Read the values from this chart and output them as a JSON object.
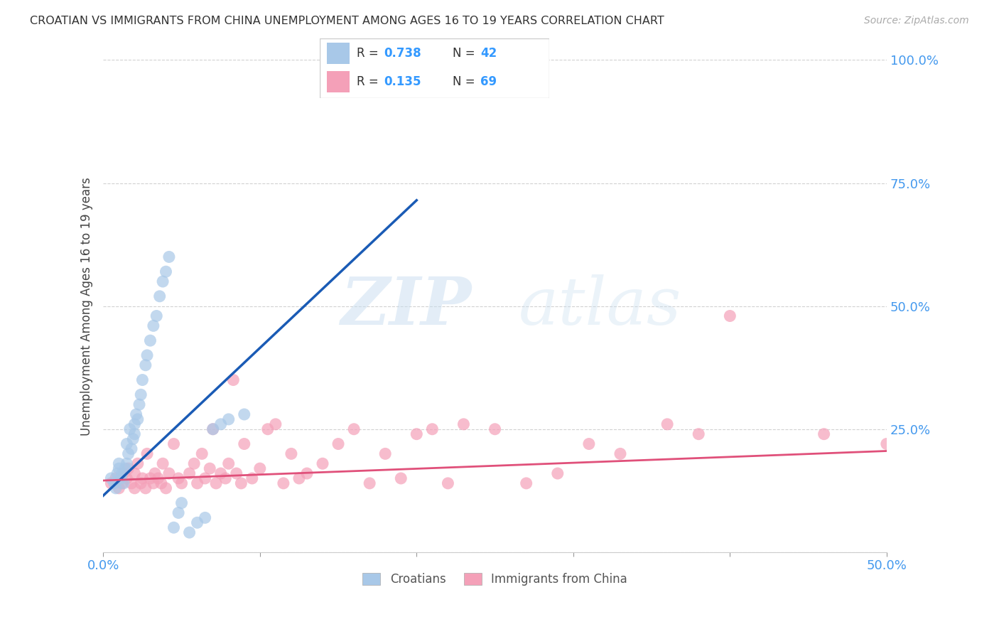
{
  "title": "CROATIAN VS IMMIGRANTS FROM CHINA UNEMPLOYMENT AMONG AGES 16 TO 19 YEARS CORRELATION CHART",
  "source": "Source: ZipAtlas.com",
  "ylabel": "Unemployment Among Ages 16 to 19 years",
  "xlim": [
    0.0,
    0.5
  ],
  "ylim": [
    0.0,
    1.0
  ],
  "xticks": [
    0.0,
    0.1,
    0.2,
    0.3,
    0.4,
    0.5
  ],
  "xtick_labels_show": [
    "0.0%",
    "",
    "",
    "",
    "",
    "50.0%"
  ],
  "yticks": [
    0.0,
    0.25,
    0.5,
    0.75,
    1.0
  ],
  "ytick_labels": [
    "",
    "25.0%",
    "50.0%",
    "75.0%",
    "100.0%"
  ],
  "croatian_color": "#a8c8e8",
  "china_color": "#f4a0b8",
  "blue_line_color": "#1a5bb5",
  "pink_line_color": "#e0507a",
  "R_croatian": 0.738,
  "N_croatian": 42,
  "R_china": 0.135,
  "N_china": 69,
  "watermark_zip": "ZIP",
  "watermark_atlas": "atlas",
  "croatian_x": [
    0.005,
    0.007,
    0.008,
    0.009,
    0.01,
    0.01,
    0.011,
    0.012,
    0.013,
    0.014,
    0.015,
    0.015,
    0.016,
    0.017,
    0.018,
    0.019,
    0.02,
    0.02,
    0.021,
    0.022,
    0.023,
    0.024,
    0.025,
    0.027,
    0.028,
    0.03,
    0.032,
    0.034,
    0.036,
    0.038,
    0.04,
    0.042,
    0.045,
    0.048,
    0.05,
    0.055,
    0.06,
    0.065,
    0.07,
    0.075,
    0.08,
    0.09
  ],
  "croatian_y": [
    0.15,
    0.14,
    0.13,
    0.16,
    0.17,
    0.18,
    0.15,
    0.16,
    0.14,
    0.17,
    0.18,
    0.22,
    0.2,
    0.25,
    0.21,
    0.23,
    0.24,
    0.26,
    0.28,
    0.27,
    0.3,
    0.32,
    0.35,
    0.38,
    0.4,
    0.43,
    0.46,
    0.48,
    0.52,
    0.55,
    0.57,
    0.6,
    0.05,
    0.08,
    0.1,
    0.04,
    0.06,
    0.07,
    0.25,
    0.26,
    0.27,
    0.28
  ],
  "china_x": [
    0.005,
    0.008,
    0.01,
    0.012,
    0.013,
    0.015,
    0.016,
    0.018,
    0.02,
    0.02,
    0.022,
    0.024,
    0.025,
    0.027,
    0.028,
    0.03,
    0.032,
    0.033,
    0.035,
    0.037,
    0.038,
    0.04,
    0.042,
    0.045,
    0.048,
    0.05,
    0.055,
    0.058,
    0.06,
    0.063,
    0.065,
    0.068,
    0.07,
    0.072,
    0.075,
    0.078,
    0.08,
    0.083,
    0.085,
    0.088,
    0.09,
    0.095,
    0.1,
    0.105,
    0.11,
    0.115,
    0.12,
    0.125,
    0.13,
    0.14,
    0.15,
    0.16,
    0.17,
    0.18,
    0.19,
    0.2,
    0.21,
    0.22,
    0.23,
    0.25,
    0.27,
    0.29,
    0.31,
    0.33,
    0.36,
    0.38,
    0.4,
    0.46,
    0.5
  ],
  "china_y": [
    0.14,
    0.15,
    0.13,
    0.14,
    0.16,
    0.15,
    0.17,
    0.14,
    0.13,
    0.16,
    0.18,
    0.14,
    0.15,
    0.13,
    0.2,
    0.15,
    0.14,
    0.16,
    0.15,
    0.14,
    0.18,
    0.13,
    0.16,
    0.22,
    0.15,
    0.14,
    0.16,
    0.18,
    0.14,
    0.2,
    0.15,
    0.17,
    0.25,
    0.14,
    0.16,
    0.15,
    0.18,
    0.35,
    0.16,
    0.14,
    0.22,
    0.15,
    0.17,
    0.25,
    0.26,
    0.14,
    0.2,
    0.15,
    0.16,
    0.18,
    0.22,
    0.25,
    0.14,
    0.2,
    0.15,
    0.24,
    0.25,
    0.14,
    0.26,
    0.25,
    0.14,
    0.16,
    0.22,
    0.2,
    0.26,
    0.24,
    0.48,
    0.24,
    0.22
  ],
  "blue_line_x": [
    -0.005,
    0.2
  ],
  "blue_line_y_start": 0.1,
  "blue_line_slope": 3.0,
  "pink_line_x": [
    -0.005,
    0.5
  ],
  "pink_line_y_start": 0.145,
  "pink_line_slope": 0.12
}
